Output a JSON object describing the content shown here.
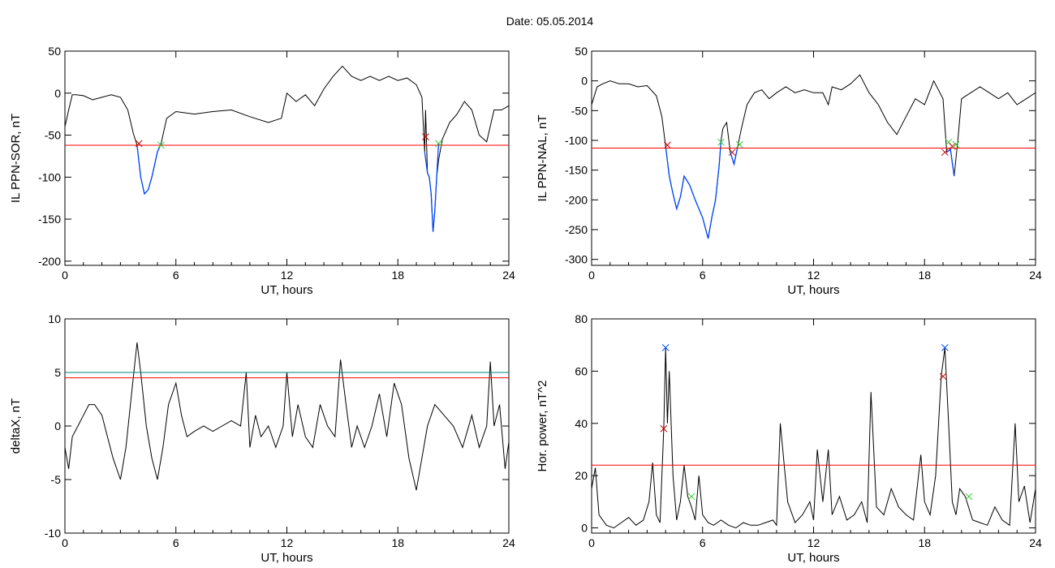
{
  "figure": {
    "title": "Date:  05.05.2014"
  },
  "colors": {
    "trace": "#000000",
    "threshold": "#ff0000",
    "threshold2": "#008080",
    "event": "#0047ff",
    "marker_red": "#cc0000",
    "marker_green": "#33cc33",
    "marker_blue": "#0055ff"
  },
  "chart_data": [
    {
      "type": "line",
      "xlabel": "UT, hours",
      "ylabel": "IL PPN-SOR, nT",
      "xlim": [
        0,
        24
      ],
      "ylim": [
        -205,
        50
      ],
      "xticks": [
        0,
        6,
        12,
        18,
        24
      ],
      "yticks": [
        50,
        0,
        -50,
        -100,
        -150,
        -200
      ],
      "series": [
        {
          "x": [
            0,
            0.2,
            0.4,
            0.6,
            1.0,
            1.5,
            2.0,
            2.5,
            3.0,
            3.4,
            3.7,
            3.9,
            4.1,
            4.3,
            4.5,
            4.7,
            5.0,
            5.2,
            5.5,
            6.0,
            7.0,
            8.0,
            9.0,
            10.0,
            11.0,
            11.7,
            12.0,
            12.5,
            13.0,
            13.5,
            14.0,
            14.5,
            15.0,
            15.5,
            16.0,
            16.5,
            17.0,
            17.5,
            18.0,
            18.5,
            19.0,
            19.3,
            19.45,
            19.5,
            19.6,
            19.7,
            19.8,
            19.9,
            20.0,
            20.1,
            20.2,
            20.4,
            20.8,
            21.2,
            21.6,
            22.0,
            22.4,
            22.8,
            23.2,
            23.6,
            24.0
          ],
          "y": [
            -40,
            -20,
            -2,
            -2,
            -3,
            -8,
            -5,
            -2,
            -5,
            -20,
            -48,
            -62,
            -100,
            -120,
            -115,
            -100,
            -70,
            -60,
            -30,
            -22,
            -25,
            -22,
            -20,
            -28,
            -35,
            -30,
            0,
            -10,
            -2,
            -15,
            5,
            20,
            32,
            20,
            15,
            20,
            15,
            20,
            15,
            18,
            10,
            -5,
            -70,
            -20,
            -95,
            -100,
            -120,
            -165,
            -140,
            -100,
            -80,
            -55,
            -35,
            -25,
            -10,
            -20,
            -50,
            -58,
            -20,
            -20,
            -15
          ]
        }
      ],
      "threshold": -62,
      "event_segments": [
        {
          "x": [
            3.9,
            4.1,
            4.3,
            4.5,
            4.7,
            5.0,
            5.2
          ],
          "y": [
            -62,
            -100,
            -120,
            -115,
            -100,
            -70,
            -60
          ]
        },
        {
          "x": [
            19.45,
            19.6,
            19.7,
            19.8,
            19.9,
            20.0,
            20.1,
            20.2
          ],
          "y": [
            -70,
            -95,
            -100,
            -120,
            -165,
            -140,
            -100,
            -60
          ]
        }
      ],
      "markers": [
        {
          "x": 4.0,
          "y": -60,
          "color": "red"
        },
        {
          "x": 5.2,
          "y": -62,
          "color": "green"
        },
        {
          "x": 19.5,
          "y": -52,
          "color": "red"
        },
        {
          "x": 20.2,
          "y": -60,
          "color": "green"
        }
      ]
    },
    {
      "type": "line",
      "xlabel": "UT, hours",
      "ylabel": "IL PPN-NAL, nT",
      "xlim": [
        0,
        24
      ],
      "ylim": [
        -310,
        50
      ],
      "xticks": [
        0,
        6,
        12,
        18,
        24
      ],
      "yticks": [
        50,
        0,
        -50,
        -100,
        -150,
        -200,
        -250,
        -300
      ],
      "series": [
        {
          "x": [
            0,
            0.3,
            0.6,
            1.0,
            1.5,
            2.0,
            2.5,
            3.0,
            3.5,
            3.8,
            4.0,
            4.2,
            4.4,
            4.6,
            4.8,
            5.0,
            5.3,
            5.6,
            6.0,
            6.3,
            6.5,
            6.7,
            6.9,
            7.0,
            7.1,
            7.3,
            7.5,
            7.7,
            7.9,
            8.1,
            8.4,
            8.8,
            9.2,
            9.6,
            10.0,
            10.5,
            11.0,
            11.5,
            12.0,
            12.5,
            12.8,
            13.0,
            13.5,
            14.0,
            14.5,
            15.0,
            15.5,
            16.0,
            16.5,
            17.0,
            17.5,
            18.0,
            18.5,
            19.0,
            19.2,
            19.4,
            19.6,
            19.8,
            20.0,
            20.5,
            21.0,
            21.5,
            22.0,
            22.5,
            23.0,
            23.5,
            24.0
          ],
          "y": [
            -40,
            -10,
            -5,
            0,
            -5,
            -5,
            -10,
            -8,
            -25,
            -60,
            -110,
            -160,
            -190,
            -215,
            -195,
            -160,
            -175,
            -200,
            -230,
            -265,
            -230,
            -200,
            -140,
            -100,
            -80,
            -70,
            -120,
            -140,
            -110,
            -80,
            -40,
            -20,
            -15,
            -30,
            -20,
            -10,
            -20,
            -15,
            -20,
            -20,
            -40,
            -10,
            -15,
            -5,
            10,
            -20,
            -40,
            -70,
            -90,
            -60,
            -30,
            -40,
            0,
            -30,
            -120,
            -115,
            -160,
            -100,
            -30,
            -20,
            -10,
            -20,
            -30,
            -20,
            -40,
            -30,
            -20
          ]
        }
      ],
      "threshold": -113,
      "event_segments": [
        {
          "x": [
            4.0,
            4.2,
            4.4,
            4.6,
            4.8,
            5.0,
            5.3,
            5.6,
            6.0,
            6.3,
            6.5,
            6.7,
            6.9,
            7.0
          ],
          "y": [
            -110,
            -160,
            -190,
            -215,
            -195,
            -160,
            -175,
            -200,
            -230,
            -265,
            -230,
            -200,
            -140,
            -100
          ]
        },
        {
          "x": [
            7.5,
            7.7,
            7.9
          ],
          "y": [
            -120,
            -140,
            -110
          ]
        },
        {
          "x": [
            19.2,
            19.4,
            19.6
          ],
          "y": [
            -120,
            -115,
            -160
          ]
        }
      ],
      "markers": [
        {
          "x": 4.1,
          "y": -108,
          "color": "red"
        },
        {
          "x": 7.0,
          "y": -103,
          "color": "green"
        },
        {
          "x": 7.6,
          "y": -120,
          "color": "red"
        },
        {
          "x": 8.0,
          "y": -107,
          "color": "green"
        },
        {
          "x": 19.1,
          "y": -120,
          "color": "red"
        },
        {
          "x": 19.3,
          "y": -103,
          "color": "green"
        },
        {
          "x": 19.5,
          "y": -110,
          "color": "red"
        },
        {
          "x": 19.7,
          "y": -107,
          "color": "green"
        }
      ]
    },
    {
      "type": "line",
      "xlabel": "UT, hours",
      "ylabel": "deltaX, nT",
      "xlim": [
        0,
        24
      ],
      "ylim": [
        -10,
        10
      ],
      "xticks": [
        0,
        6,
        12,
        18,
        24
      ],
      "yticks": [
        10,
        5,
        0,
        -5,
        -10
      ],
      "series": [
        {
          "x": [
            0,
            0.2,
            0.4,
            0.7,
            1.0,
            1.3,
            1.6,
            2.0,
            2.3,
            2.6,
            3.0,
            3.3,
            3.6,
            3.9,
            4.1,
            4.4,
            4.7,
            5.0,
            5.3,
            5.6,
            6.0,
            6.3,
            6.6,
            7.0,
            7.5,
            8.0,
            8.5,
            9.0,
            9.5,
            9.8,
            10.0,
            10.3,
            10.6,
            11.0,
            11.4,
            11.8,
            12.0,
            12.3,
            12.6,
            13.0,
            13.4,
            13.8,
            14.2,
            14.6,
            14.9,
            15.2,
            15.5,
            15.8,
            16.2,
            16.6,
            17.0,
            17.4,
            17.8,
            18.2,
            18.6,
            19.0,
            19.3,
            19.6,
            20.0,
            20.5,
            21.0,
            21.5,
            22.0,
            22.4,
            22.8,
            23.0,
            23.2,
            23.5,
            23.8,
            24.0
          ],
          "y": [
            -2,
            -4,
            -1,
            0,
            1,
            2,
            2,
            1,
            -1,
            -3,
            -5,
            -2,
            3,
            7.8,
            5,
            0,
            -3,
            -5,
            -2,
            2,
            4,
            1,
            -1,
            -0.5,
            0,
            -0.5,
            0,
            0.5,
            0,
            5,
            -2,
            1,
            -1,
            0,
            -2,
            0,
            5,
            -1,
            2,
            -1,
            -2,
            2,
            0,
            -1,
            6.2,
            2,
            -2,
            0,
            -2,
            0,
            3,
            -1,
            4,
            2,
            -3,
            -6,
            -3,
            0,
            2,
            1,
            0,
            -2,
            1,
            -2,
            0,
            6,
            0,
            2,
            -4,
            -1.5
          ]
        }
      ],
      "threshold": 4.5,
      "threshold2": 5.0,
      "markers": []
    },
    {
      "type": "line",
      "xlabel": "UT, hours",
      "ylabel": "Hor. power, nT^2",
      "xlim": [
        0,
        24
      ],
      "ylim": [
        -2,
        80
      ],
      "xticks": [
        0,
        6,
        12,
        18,
        24
      ],
      "yticks": [
        80,
        60,
        40,
        20,
        0
      ],
      "series": [
        {
          "x": [
            0,
            0.2,
            0.4,
            0.8,
            1.2,
            1.6,
            2.0,
            2.4,
            2.8,
            3.1,
            3.3,
            3.5,
            3.7,
            3.9,
            4.0,
            4.1,
            4.2,
            4.4,
            4.6,
            4.8,
            5.0,
            5.2,
            5.4,
            5.6,
            5.8,
            6.0,
            6.3,
            6.6,
            7.0,
            7.4,
            7.8,
            8.2,
            8.6,
            9.0,
            9.4,
            9.8,
            10.0,
            10.2,
            10.6,
            11.0,
            11.4,
            11.8,
            12.0,
            12.2,
            12.5,
            12.8,
            13.0,
            13.4,
            13.8,
            14.2,
            14.6,
            14.9,
            15.1,
            15.4,
            15.8,
            16.2,
            16.6,
            17.0,
            17.4,
            17.8,
            18.0,
            18.3,
            18.6,
            18.9,
            19.1,
            19.3,
            19.5,
            19.7,
            19.9,
            20.2,
            20.6,
            21.0,
            21.4,
            21.8,
            22.2,
            22.6,
            22.9,
            23.1,
            23.4,
            23.7,
            24.0
          ],
          "y": [
            15,
            23,
            5,
            1,
            0,
            2,
            4,
            1,
            3,
            10,
            25,
            5,
            2,
            38,
            69,
            40,
            60,
            20,
            3,
            10,
            24,
            12,
            8,
            3,
            20,
            5,
            2,
            1,
            3,
            1,
            0,
            2,
            1,
            1,
            2,
            3,
            1,
            40,
            10,
            2,
            5,
            10,
            3,
            30,
            10,
            30,
            5,
            12,
            3,
            5,
            10,
            2,
            52,
            8,
            5,
            15,
            8,
            5,
            3,
            28,
            10,
            5,
            20,
            58,
            69,
            40,
            10,
            5,
            15,
            12,
            3,
            2,
            1,
            8,
            3,
            1,
            40,
            10,
            16,
            2,
            15
          ]
        }
      ],
      "threshold": 24,
      "markers": [
        {
          "x": 3.9,
          "y": 38,
          "color": "red"
        },
        {
          "x": 4.0,
          "y": 69,
          "color": "blue"
        },
        {
          "x": 5.4,
          "y": 12,
          "color": "green"
        },
        {
          "x": 19.0,
          "y": 58,
          "color": "red"
        },
        {
          "x": 19.1,
          "y": 69,
          "color": "blue"
        },
        {
          "x": 20.4,
          "y": 12,
          "color": "green"
        }
      ]
    }
  ]
}
